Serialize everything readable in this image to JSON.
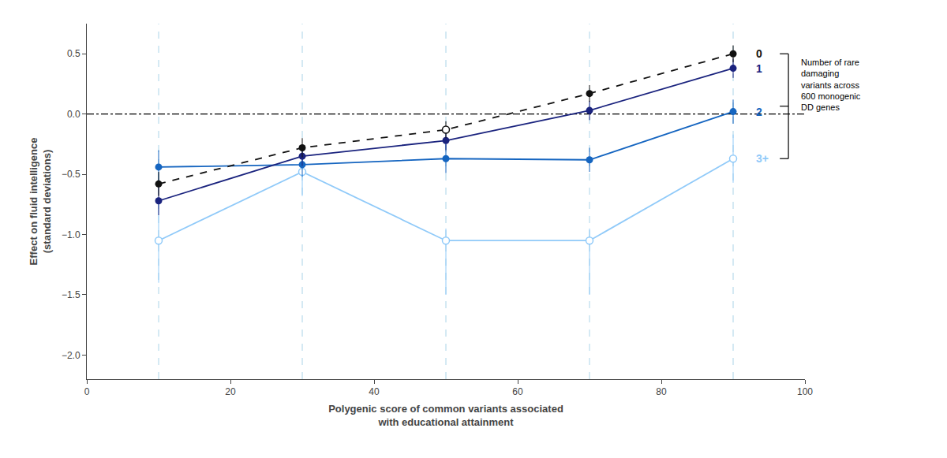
{
  "chart_data": {
    "type": "line",
    "x": [
      10,
      30,
      50,
      70,
      90
    ],
    "series": [
      {
        "name": "3+",
        "color": "#90caf9",
        "values": [
          -1.05,
          -0.48,
          -1.05,
          -1.05,
          -0.37
        ],
        "error_minus": [
          0.35,
          0.2,
          0.45,
          0.45,
          0.2
        ],
        "error_plus": [
          0.35,
          0.2,
          0.1,
          0.1,
          0.2
        ],
        "marker": "open",
        "line_style": "solid"
      },
      {
        "name": "2",
        "color": "#1565c0",
        "values": [
          -0.44,
          -0.42,
          -0.37,
          -0.38,
          0.02
        ],
        "error_minus": [
          0.14,
          0.1,
          0.12,
          0.1,
          0.1
        ],
        "error_plus": [
          0.14,
          0.1,
          0.12,
          0.1,
          0.1
        ],
        "marker": "filled",
        "line_style": "solid"
      },
      {
        "name": "1",
        "color": "#1a237e",
        "values": [
          -0.72,
          -0.35,
          -0.22,
          0.03,
          0.38
        ],
        "error_minus": [
          0.12,
          0.08,
          0.08,
          0.08,
          0.08
        ],
        "error_plus": [
          0.12,
          0.08,
          0.08,
          0.08,
          0.08
        ],
        "marker": "filled",
        "line_style": "solid"
      },
      {
        "name": "0",
        "color": "#111111",
        "values": [
          -0.58,
          -0.28,
          -0.13,
          0.17,
          0.5
        ],
        "error_minus": [
          0.1,
          0.08,
          0.07,
          0.07,
          0.07
        ],
        "error_plus": [
          0.1,
          0.08,
          0.07,
          0.07,
          0.07
        ],
        "marker": "filled",
        "line_style": "dashed",
        "open_marker_x": [
          50
        ]
      }
    ],
    "xlabel": "Polygenic score of common variants associated\nwith educational attainment",
    "ylabel": "Effect on fluid intelligence\n(standard deviations)",
    "xlim": [
      0,
      100
    ],
    "ylim": [
      -2.2,
      0.75
    ],
    "xticks": [
      0,
      20,
      40,
      60,
      80,
      100
    ],
    "yticks": [
      {
        "value": -2.0,
        "label": "−2.0"
      },
      {
        "value": -1.5,
        "label": "−1.5"
      },
      {
        "value": -1.0,
        "label": "−1.0"
      },
      {
        "value": -0.5,
        "label": "−0.5"
      },
      {
        "value": 0.0,
        "label": "0.0"
      },
      {
        "value": 0.5,
        "label": "0.5"
      }
    ],
    "grid": false,
    "vlines": [
      10,
      30,
      50,
      70,
      90
    ],
    "hlines": [
      0.0
    ],
    "legend": "right",
    "legend_title": "Number of rare\ndamaging\nvariants across\n600 monogenic\nDD genes"
  }
}
